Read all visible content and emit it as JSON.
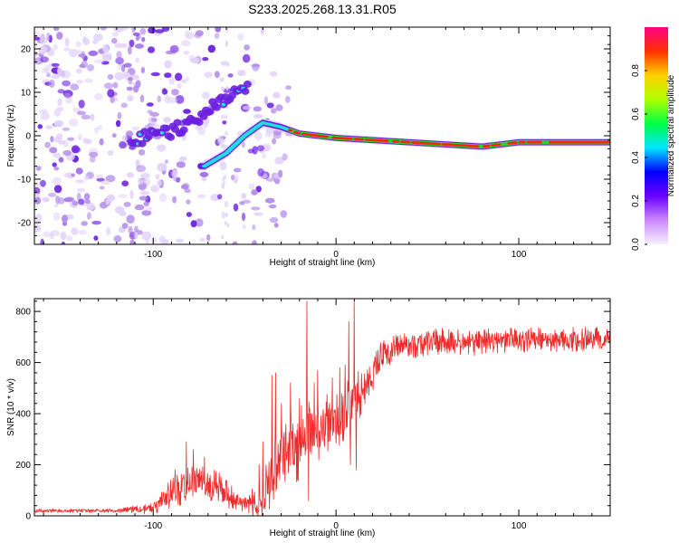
{
  "figure": {
    "title": "S233.2025.268.13.31.R05"
  },
  "colors": {
    "background": "#ffffff",
    "axes": "#000000",
    "snr_line": "#ee2a2a",
    "spec_noise_light": "#e2d2f8",
    "spec_noise_mid": "#b18be8",
    "spec_noise_dark": "#6a1fe0",
    "spec_cyan": "#1fe0e0",
    "spec_green": "#30d030",
    "spec_core": "#ff2010"
  },
  "chart_data": [
    {
      "id": "spectrogram",
      "type": "heatmap",
      "title": "S233.2025.268.13.31.R05",
      "xlabel": "Height of straight line (km)",
      "ylabel": "Frequency (Hz)",
      "xlim": [
        -165,
        150
      ],
      "ylim": [
        -25,
        25
      ],
      "xticks": [
        -100,
        0,
        100
      ],
      "yticks": [
        -20,
        -10,
        0,
        10,
        20
      ],
      "grid": false,
      "ridge": [
        {
          "x": -72,
          "f": -7
        },
        {
          "x": -60,
          "f": -4
        },
        {
          "x": -50,
          "f": 0
        },
        {
          "x": -40,
          "f": 3
        },
        {
          "x": -30,
          "f": 2
        },
        {
          "x": -20,
          "f": 0.5
        },
        {
          "x": 0,
          "f": -0.5
        },
        {
          "x": 40,
          "f": -1.5
        },
        {
          "x": 80,
          "f": -2.5
        },
        {
          "x": 100,
          "f": -1.5
        },
        {
          "x": 150,
          "f": -1.5
        }
      ],
      "upper_branch": [
        {
          "x": -110,
          "f": -1
        },
        {
          "x": -90,
          "f": 1
        },
        {
          "x": -75,
          "f": 4
        },
        {
          "x": -60,
          "f": 9
        },
        {
          "x": -50,
          "f": 11
        }
      ],
      "colorbar": {
        "label": "Normalized spectral amplitude",
        "range": [
          0,
          1
        ],
        "ticks": [
          "0.0",
          "0.2",
          "0.4",
          "0.6",
          "0.8"
        ],
        "tick_values": [
          0,
          0.2,
          0.4,
          0.6,
          0.8
        ],
        "stops": [
          "#f6f0ff",
          "#cc88ff",
          "#6a00ff",
          "#0000ff",
          "#00e5ff",
          "#00ff44",
          "#b0ff00",
          "#ffd000",
          "#ff3000",
          "#ff0088"
        ]
      }
    },
    {
      "id": "snr",
      "type": "line",
      "xlabel": "Height of straight line (km)",
      "ylabel": "SNR (10 * v/v)",
      "xlim": [
        -165,
        150
      ],
      "ylim": [
        0,
        850
      ],
      "xticks": [
        -100,
        0,
        100
      ],
      "yticks": [
        0,
        200,
        400,
        600,
        800
      ],
      "grid": false,
      "series": [
        {
          "name": "SNR",
          "color": "#ee2a2a",
          "baseline": [
            [
              -165,
              20
            ],
            [
              -120,
              20
            ],
            [
              -100,
              30
            ],
            [
              -90,
              90
            ],
            [
              -80,
              120
            ],
            [
              -75,
              150
            ],
            [
              -70,
              110
            ],
            [
              -65,
              120
            ],
            [
              -55,
              60
            ],
            [
              -48,
              40
            ],
            [
              -42,
              60
            ],
            [
              -38,
              120
            ],
            [
              -34,
              180
            ],
            [
              -30,
              230
            ],
            [
              -25,
              270
            ],
            [
              -20,
              300
            ],
            [
              -15,
              320
            ],
            [
              -10,
              340
            ],
            [
              -5,
              360
            ],
            [
              0,
              380
            ],
            [
              5,
              410
            ],
            [
              10,
              440
            ],
            [
              15,
              500
            ],
            [
              20,
              560
            ],
            [
              25,
              620
            ],
            [
              30,
              650
            ],
            [
              40,
              670
            ],
            [
              60,
              680
            ],
            [
              80,
              680
            ],
            [
              100,
              690
            ],
            [
              150,
              690
            ]
          ],
          "amplitude": [
            [
              -165,
              8
            ],
            [
              -120,
              8
            ],
            [
              -100,
              25
            ],
            [
              -90,
              60
            ],
            [
              -80,
              80
            ],
            [
              -70,
              70
            ],
            [
              -60,
              55
            ],
            [
              -50,
              30
            ],
            [
              -40,
              110
            ],
            [
              -30,
              160
            ],
            [
              -20,
              160
            ],
            [
              -10,
              140
            ],
            [
              0,
              130
            ],
            [
              10,
              110
            ],
            [
              20,
              80
            ],
            [
              30,
              55
            ],
            [
              60,
              55
            ],
            [
              100,
              50
            ],
            [
              150,
              50
            ]
          ],
          "spikes": [
            [
              -42,
              200
            ],
            [
              -40,
              290
            ],
            [
              -35,
              550
            ],
            [
              -33,
              560
            ],
            [
              -30,
              440
            ],
            [
              -25,
              520
            ],
            [
              -20,
              460
            ],
            [
              -16,
              840
            ],
            [
              -15,
              60
            ],
            [
              -12,
              520
            ],
            [
              -10,
              570
            ],
            [
              -6,
              400
            ],
            [
              -2,
              540
            ],
            [
              2,
              580
            ],
            [
              5,
              590
            ],
            [
              7,
              760
            ],
            [
              8,
              200
            ],
            [
              10,
              840
            ],
            [
              11,
              180
            ],
            [
              15,
              500
            ],
            [
              -82,
              290
            ],
            [
              -78,
              260
            ],
            [
              -72,
              230
            ],
            [
              -88,
              180
            ]
          ]
        }
      ]
    }
  ]
}
